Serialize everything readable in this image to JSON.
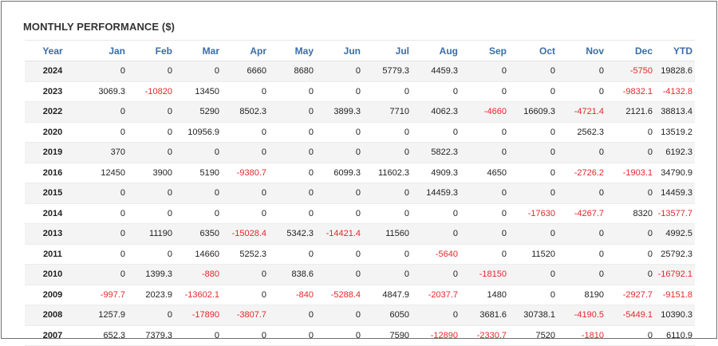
{
  "title": "MONTHLY PERFORMANCE ($)",
  "columns": [
    "Year",
    "Jan",
    "Feb",
    "Mar",
    "Apr",
    "May",
    "Jun",
    "Jul",
    "Aug",
    "Sep",
    "Oct",
    "Nov",
    "Dec",
    "YTD"
  ],
  "rows": [
    [
      "2024",
      "0",
      "0",
      "0",
      "6660",
      "8680",
      "0",
      "5779.3",
      "4459.3",
      "0",
      "0",
      "0",
      "-5750",
      "19828.6"
    ],
    [
      "2023",
      "3069.3",
      "-10820",
      "13450",
      "0",
      "0",
      "0",
      "0",
      "0",
      "0",
      "0",
      "0",
      "-9832.1",
      "-4132.8"
    ],
    [
      "2022",
      "0",
      "0",
      "5290",
      "8502.3",
      "0",
      "3899.3",
      "7710",
      "4062.3",
      "-4660",
      "16609.3",
      "-4721.4",
      "2121.6",
      "38813.4"
    ],
    [
      "2020",
      "0",
      "0",
      "10956.9",
      "0",
      "0",
      "0",
      "0",
      "0",
      "0",
      "0",
      "2562.3",
      "0",
      "13519.2"
    ],
    [
      "2019",
      "370",
      "0",
      "0",
      "0",
      "0",
      "0",
      "0",
      "5822.3",
      "0",
      "0",
      "0",
      "0",
      "6192.3"
    ],
    [
      "2016",
      "12450",
      "3900",
      "5190",
      "-9380.7",
      "0",
      "6099.3",
      "11602.3",
      "4909.3",
      "4650",
      "0",
      "-2726.2",
      "-1903.1",
      "34790.9"
    ],
    [
      "2015",
      "0",
      "0",
      "0",
      "0",
      "0",
      "0",
      "0",
      "14459.3",
      "0",
      "0",
      "0",
      "0",
      "14459.3"
    ],
    [
      "2014",
      "0",
      "0",
      "0",
      "0",
      "0",
      "0",
      "0",
      "0",
      "0",
      "-17630",
      "-4267.7",
      "8320",
      "-13577.7"
    ],
    [
      "2013",
      "0",
      "11190",
      "6350",
      "-15028.4",
      "5342.3",
      "-14421.4",
      "11560",
      "0",
      "0",
      "0",
      "0",
      "0",
      "4992.5"
    ],
    [
      "2011",
      "0",
      "0",
      "14660",
      "5252.3",
      "0",
      "0",
      "0",
      "-5640",
      "0",
      "11520",
      "0",
      "0",
      "25792.3"
    ],
    [
      "2010",
      "0",
      "1399.3",
      "-880",
      "0",
      "838.6",
      "0",
      "0",
      "0",
      "-18150",
      "0",
      "0",
      "0",
      "-16792.1"
    ],
    [
      "2009",
      "-997.7",
      "2023.9",
      "-13602.1",
      "0",
      "-840",
      "-5288.4",
      "4847.9",
      "-2037.7",
      "1480",
      "0",
      "8190",
      "-2927.7",
      "-9151.8"
    ],
    [
      "2008",
      "1257.9",
      "0",
      "-17890",
      "-3807.7",
      "0",
      "0",
      "6050",
      "0",
      "3681.6",
      "30738.1",
      "-4190.5",
      "-5449.1",
      "10390.3"
    ],
    [
      "2007",
      "652.3",
      "7379.3",
      "0",
      "0",
      "0",
      "0",
      "7590",
      "-12890",
      "-2330.7",
      "7520",
      "-1810",
      "0",
      "6110.9"
    ]
  ],
  "colors": {
    "header": "#3a6ea5",
    "negative": "#e8262b",
    "stripe": "#f4f4f4"
  }
}
